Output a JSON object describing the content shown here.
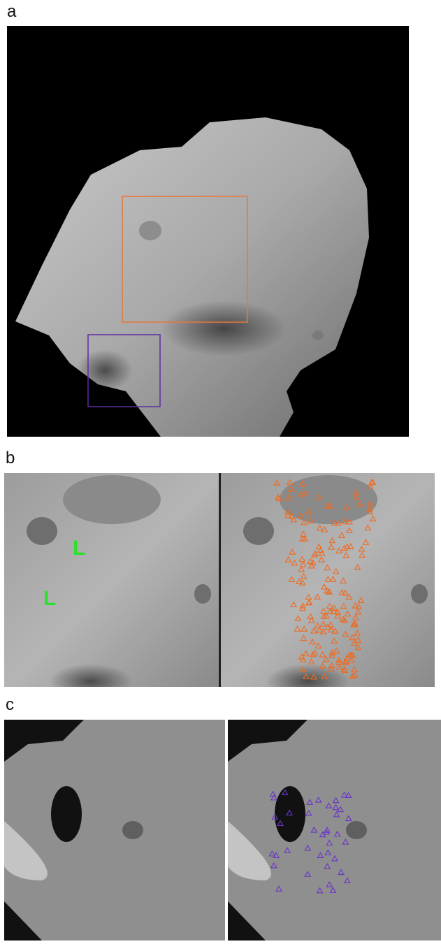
{
  "panels": {
    "a": {
      "label": "a"
    },
    "b": {
      "label": "b",
      "markers": [
        "L",
        "L"
      ]
    },
    "c": {
      "label": "c"
    }
  }
}
